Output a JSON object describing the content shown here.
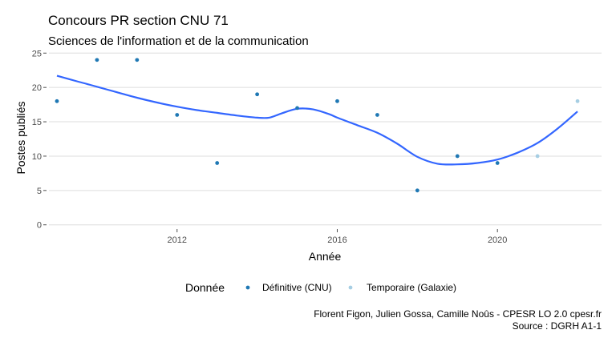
{
  "chart_data": {
    "type": "scatter",
    "title": "Concours PR section CNU 71",
    "subtitle": "Sciences de l'information et de la communication",
    "xlabel": "Année",
    "ylabel": "Postes publiés",
    "xlim": [
      2008.8,
      2022.6
    ],
    "ylim": [
      -0.5,
      25.5
    ],
    "x_ticks": [
      2012,
      2016,
      2020
    ],
    "y_ticks": [
      0,
      5,
      10,
      15,
      20,
      25
    ],
    "grid": "horizontal",
    "legend_position": "bottom",
    "legend_title": "Donnée",
    "series": [
      {
        "name": "Définitive (CNU)",
        "color": "#1f78b4",
        "x": [
          2009,
          2010,
          2011,
          2012,
          2013,
          2014,
          2015,
          2016,
          2017,
          2018,
          2019,
          2020
        ],
        "values": [
          18,
          24,
          24,
          16,
          9,
          19,
          17,
          18,
          16,
          5,
          10,
          9
        ]
      },
      {
        "name": "Temporaire (Galaxie)",
        "color": "#a6cee3",
        "x": [
          2021,
          2022
        ],
        "values": [
          10,
          18
        ]
      }
    ],
    "trend": {
      "type": "loess",
      "color": "#3366ff",
      "x": [
        2009,
        2009.5,
        2010,
        2010.5,
        2011,
        2011.5,
        2012,
        2012.5,
        2013,
        2013.5,
        2014,
        2014.3,
        2014.6,
        2015,
        2015.4,
        2015.8,
        2016,
        2016.5,
        2017,
        2017.5,
        2018,
        2018.5,
        2019,
        2019.5,
        2020,
        2020.5,
        2021,
        2021.5,
        2022
      ],
      "values": [
        21.7,
        20.9,
        20.1,
        19.3,
        18.5,
        17.8,
        17.2,
        16.7,
        16.3,
        15.9,
        15.6,
        15.6,
        16.2,
        16.9,
        16.8,
        16.1,
        15.6,
        14.5,
        13.4,
        11.8,
        9.9,
        8.9,
        8.8,
        9.0,
        9.5,
        10.5,
        11.9,
        14.0,
        16.5
      ]
    }
  },
  "caption": {
    "line1": "Florent Figon, Julien Gossa, Camille Noûs - CPESR LO 2.0 cpesr.fr",
    "line2": "Source : DGRH A1-1"
  }
}
